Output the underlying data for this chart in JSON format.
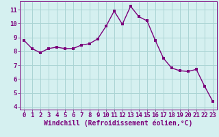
{
  "x": [
    0,
    1,
    2,
    3,
    4,
    5,
    6,
    7,
    8,
    9,
    10,
    11,
    12,
    13,
    14,
    15,
    16,
    17,
    18,
    19,
    20,
    21,
    22,
    23
  ],
  "y": [
    8.8,
    8.2,
    7.9,
    8.2,
    8.3,
    8.2,
    8.2,
    8.45,
    8.55,
    8.9,
    9.8,
    10.9,
    9.95,
    11.25,
    10.5,
    10.2,
    8.8,
    7.5,
    6.8,
    6.6,
    6.55,
    6.7,
    5.5,
    4.4
  ],
  "line_color": "#7b007b",
  "marker_color": "#7b007b",
  "bg_color": "#d5f0f0",
  "grid_color": "#aad4d4",
  "axis_color": "#7b007b",
  "xlabel": "Windchill (Refroidissement éolien,°C)",
  "xlim": [
    -0.5,
    23.5
  ],
  "ylim": [
    3.8,
    11.6
  ],
  "yticks": [
    4,
    5,
    6,
    7,
    8,
    9,
    10,
    11
  ],
  "xticks": [
    0,
    1,
    2,
    3,
    4,
    5,
    6,
    7,
    8,
    9,
    10,
    11,
    12,
    13,
    14,
    15,
    16,
    17,
    18,
    19,
    20,
    21,
    22,
    23
  ],
  "tick_label_fontsize": 6.5,
  "xlabel_fontsize": 7,
  "line_width": 1.0,
  "marker_size": 2.5
}
